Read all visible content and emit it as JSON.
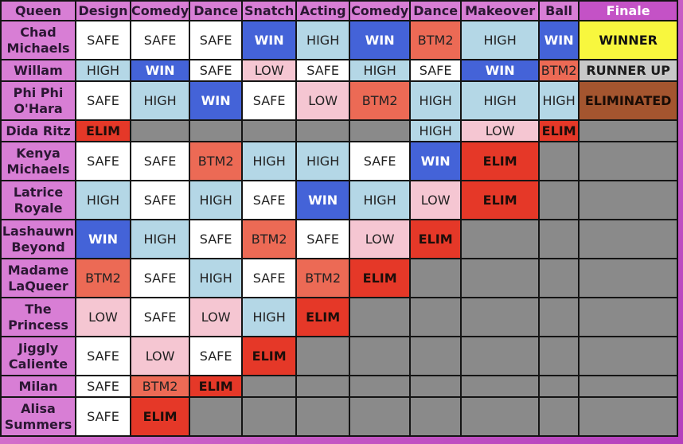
{
  "chart_data": {
    "type": "table",
    "header_first": "Queen",
    "columns": [
      "Design",
      "Comedy",
      "Dance",
      "Snatch",
      "Acting",
      "Comedy",
      "Dance",
      "Makeover",
      "Ball",
      "Finale"
    ],
    "colors": {
      "SAFE": "#ffffff",
      "HIGH": "#b4d7e6",
      "WIN": "#4463d8",
      "LOW": "#f5c6d2",
      "BTM2": "#ec6a55",
      "ELIM": "#e53828",
      "OUT": "#8a8a8a",
      "WINNER": "#f8f73e",
      "RUNNER UP": "#c8c8c8",
      "ELIMINATED": "#a4552f"
    },
    "rows": [
      {
        "queen": "Chad Michaels",
        "results": [
          "SAFE",
          "SAFE",
          "SAFE",
          "WIN",
          "HIGH",
          "WIN",
          "BTM2",
          "HIGH",
          "WIN",
          "WINNER"
        ]
      },
      {
        "queen": "Willam",
        "results": [
          "HIGH",
          "WIN",
          "SAFE",
          "LOW",
          "SAFE",
          "HIGH",
          "SAFE",
          "WIN",
          "BTM2",
          "RUNNER UP"
        ]
      },
      {
        "queen": "Phi Phi O'Hara",
        "results": [
          "SAFE",
          "HIGH",
          "WIN",
          "SAFE",
          "LOW",
          "BTM2",
          "HIGH",
          "HIGH",
          "HIGH",
          "ELIMINATED"
        ]
      },
      {
        "queen": "Dida Ritz",
        "results": [
          "ELIM",
          "",
          "",
          "",
          "",
          "",
          "HIGH",
          "LOW",
          "ELIM",
          ""
        ]
      },
      {
        "queen": "Kenya Michaels",
        "results": [
          "SAFE",
          "SAFE",
          "BTM2",
          "HIGH",
          "HIGH",
          "SAFE",
          "WIN",
          "ELIM",
          "",
          ""
        ]
      },
      {
        "queen": "Latrice Royale",
        "results": [
          "HIGH",
          "SAFE",
          "HIGH",
          "SAFE",
          "WIN",
          "HIGH",
          "LOW",
          "ELIM",
          "",
          ""
        ]
      },
      {
        "queen": "Lashauwn Beyond",
        "results": [
          "WIN",
          "HIGH",
          "SAFE",
          "BTM2",
          "SAFE",
          "LOW",
          "ELIM",
          "",
          "",
          ""
        ]
      },
      {
        "queen": "Madame LaQueer",
        "results": [
          "BTM2",
          "SAFE",
          "HIGH",
          "SAFE",
          "BTM2",
          "ELIM",
          "",
          "",
          "",
          ""
        ]
      },
      {
        "queen": "The Princess",
        "results": [
          "LOW",
          "SAFE",
          "LOW",
          "HIGH",
          "ELIM",
          "",
          "",
          "",
          "",
          ""
        ]
      },
      {
        "queen": "Jiggly Caliente",
        "results": [
          "SAFE",
          "LOW",
          "SAFE",
          "ELIM",
          "",
          "",
          "",
          "",
          "",
          ""
        ]
      },
      {
        "queen": "Milan",
        "results": [
          "SAFE",
          "BTM2",
          "ELIM",
          "",
          "",
          "",
          "",
          "",
          "",
          ""
        ]
      },
      {
        "queen": "Alisa Summers",
        "results": [
          "SAFE",
          "ELIM",
          "",
          "",
          "",
          "",
          "",
          "",
          "",
          ""
        ]
      }
    ]
  }
}
